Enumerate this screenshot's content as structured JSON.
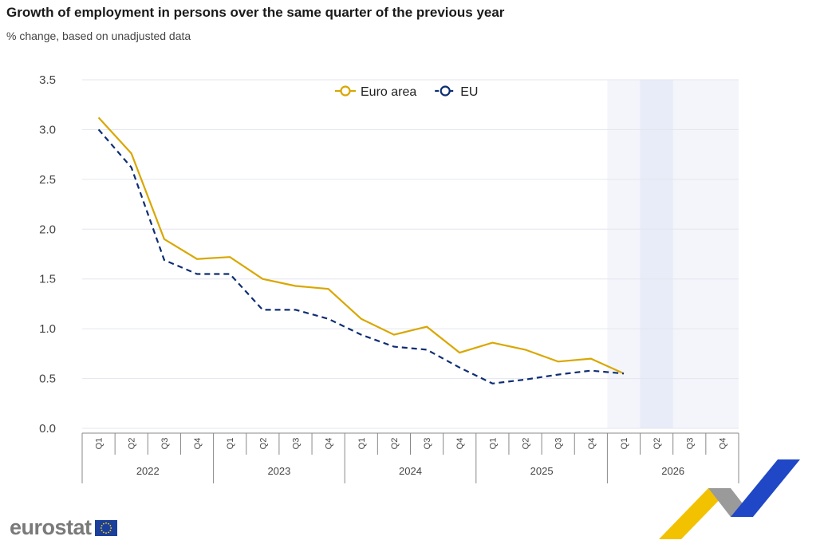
{
  "header": {
    "title": "Growth of employment in persons over the same quarter of the previous year",
    "subtitle": "% change, based on unadjusted data"
  },
  "logo": {
    "text": "eurostat"
  },
  "colors": {
    "euro_area": "#d9a700",
    "eu": "#0e2d73",
    "grid": "#e3e6ee",
    "forecast_band": "#f4f5fb",
    "forecast_band_dark": "#e8ecf8"
  },
  "chart_data": {
    "type": "line",
    "title": "Growth of employment in persons over the same quarter of the previous year",
    "subtitle": "% change, based on unadjusted data",
    "xlabel": "",
    "ylabel": "",
    "ylim": [
      0,
      3.5
    ],
    "yticks": [
      "0.0",
      "0.5",
      "1.0",
      "1.5",
      "2.0",
      "2.5",
      "3.0",
      "3.5"
    ],
    "grid": true,
    "legend_position": "top-center",
    "years": [
      "2022",
      "2023",
      "2024",
      "2025",
      "2026"
    ],
    "quarters": [
      "Q1",
      "Q2",
      "Q3",
      "Q4"
    ],
    "categories": [
      "2022-Q1",
      "2022-Q2",
      "2022-Q3",
      "2022-Q4",
      "2023-Q1",
      "2023-Q2",
      "2023-Q3",
      "2023-Q4",
      "2024-Q1",
      "2024-Q2",
      "2024-Q3",
      "2024-Q4",
      "2025-Q1",
      "2025-Q2",
      "2025-Q3",
      "2025-Q4",
      "2026-Q1",
      "2026-Q2",
      "2026-Q3",
      "2026-Q4"
    ],
    "series": [
      {
        "name": "Euro area",
        "style": "solid",
        "values": [
          3.12,
          2.76,
          1.9,
          1.7,
          1.72,
          1.5,
          1.43,
          1.4,
          1.1,
          0.94,
          1.02,
          0.76,
          0.86,
          0.79,
          0.67,
          0.7,
          0.55,
          null,
          null,
          null
        ]
      },
      {
        "name": "EU",
        "style": "dashed",
        "values": [
          3.0,
          2.62,
          1.69,
          1.55,
          1.55,
          1.19,
          1.19,
          1.1,
          0.94,
          0.82,
          0.79,
          0.61,
          0.45,
          0.49,
          0.54,
          0.58,
          0.55,
          null,
          null,
          null
        ]
      }
    ],
    "forecast_region": {
      "from": "2026-Q1",
      "to": "2026-Q4",
      "highlight": "2026-Q2"
    }
  }
}
